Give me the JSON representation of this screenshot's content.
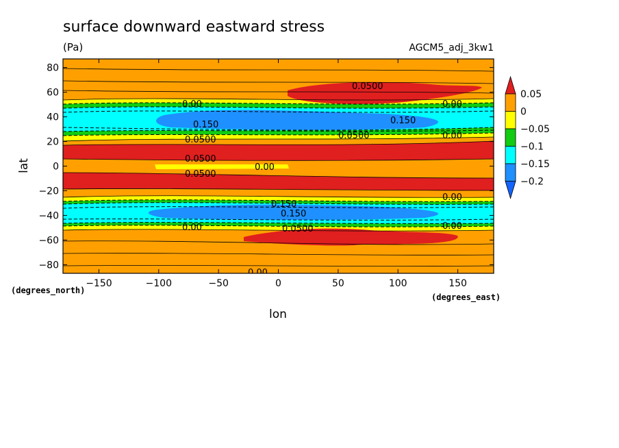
{
  "chart_data": {
    "type": "heatmap",
    "title": "surface downward eastward stress",
    "units": "(Pa)",
    "model_label": "AGCM5_adj_3kw1",
    "xlabel": "lon",
    "ylabel": "lat",
    "x_units": "(degrees_east)",
    "y_units": "(degrees_north)",
    "xlim": [
      -180,
      180
    ],
    "ylim": [
      -87,
      87
    ],
    "x_ticks": [
      -150,
      -100,
      -50,
      0,
      50,
      100,
      150
    ],
    "x_tick_labels": [
      "−150",
      "−100",
      "−50",
      "0",
      "50",
      "100",
      "150"
    ],
    "y_ticks": [
      80,
      60,
      40,
      20,
      0,
      -20,
      -40,
      -60,
      -80
    ],
    "y_tick_labels": [
      "80",
      "60",
      "40",
      "20",
      "0",
      "−20",
      "−40",
      "−60",
      "−80"
    ],
    "colorbar": {
      "levels": [
        0.05,
        0,
        -0.05,
        -0.1,
        -0.15,
        -0.2
      ],
      "labels": [
        "0.05",
        "0",
        "−0.05",
        "−0.1",
        "−0.15",
        "−0.2"
      ],
      "colors": [
        "#e01f1f",
        "#ffa000",
        "#ffff00",
        "#11cc11",
        "#00ffff",
        "#1e90ff",
        "#1464ff"
      ]
    },
    "latitude_bands": [
      {
        "lat_from": 87,
        "lat_to": 56,
        "range": "0 to 0.05"
      },
      {
        "lat_from": 56,
        "lat_to": 51,
        "range": "-0.05 to 0"
      },
      {
        "lat_from": 51,
        "lat_to": 46,
        "range": "-0.1 to -0.05"
      },
      {
        "lat_from": 46,
        "lat_to": 32,
        "range": "-0.2 to -0.1"
      },
      {
        "lat_from": 32,
        "lat_to": 22,
        "range": "-0.1 to 0"
      },
      {
        "lat_from": 22,
        "lat_to": 12,
        "range": "> 0.05"
      },
      {
        "lat_from": 12,
        "lat_to": 7,
        "range": "0 to 0.05"
      },
      {
        "lat_from": 7,
        "lat_to": -7,
        "range": "-0.05 to 0.05"
      },
      {
        "lat_from": -7,
        "lat_to": -21,
        "range": "> 0.05"
      },
      {
        "lat_from": -21,
        "lat_to": -30,
        "range": "0 to 0.05"
      },
      {
        "lat_from": -30,
        "lat_to": -49,
        "range": "-0.2 to -0.05"
      },
      {
        "lat_from": -49,
        "lat_to": -87,
        "range": "0 to 0.05"
      }
    ],
    "contour_labels": [
      "0.0500",
      "0.00",
      "0.150",
      "0.150",
      "0.0500",
      "0.00",
      "0.0500",
      "0.0500",
      "0.00",
      "0.0500",
      "0.00",
      "0.150",
      "0.150",
      "0.0500",
      "0.00",
      "0.00",
      "0.00",
      "0.00"
    ]
  }
}
